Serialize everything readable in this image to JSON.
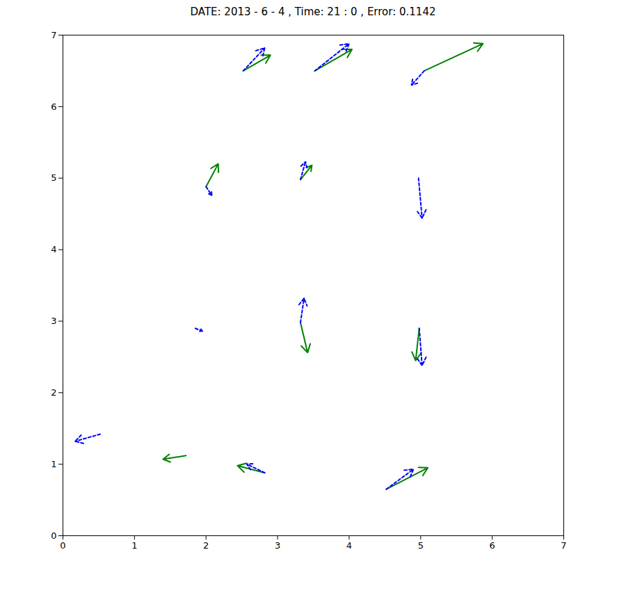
{
  "chart_data": {
    "type": "quiver",
    "title": "DATE: 2013 -  6 -  4 , Time: 21 :  0 , Error: 0.1142",
    "xlim": [
      0,
      7
    ],
    "ylim": [
      0,
      7
    ],
    "xticks": [
      0,
      1,
      2,
      3,
      4,
      5,
      6,
      7
    ],
    "yticks": [
      0,
      1,
      2,
      3,
      4,
      5,
      6,
      7
    ],
    "series": [
      {
        "color": "#008000",
        "line_style": "solid",
        "x": [
          2.52,
          3.52,
          5.05,
          2.0,
          3.32,
          4.97,
          1.85,
          3.32,
          4.98,
          0.52,
          1.72,
          2.82,
          4.52
        ],
        "y": [
          6.5,
          6.5,
          6.5,
          4.88,
          4.98,
          5.0,
          2.9,
          2.98,
          2.9,
          1.42,
          1.12,
          0.88,
          0.65
        ],
        "dx": [
          0.38,
          0.52,
          0.82,
          0.17,
          0.16,
          0.0,
          0.0,
          0.1,
          -0.05,
          0.0,
          -0.32,
          -0.38,
          0.58
        ],
        "dy": [
          0.22,
          0.3,
          0.38,
          0.32,
          0.2,
          0.0,
          0.0,
          -0.42,
          -0.45,
          0.0,
          -0.05,
          0.1,
          0.3
        ]
      },
      {
        "color": "#0000FF",
        "line_style": "dashed",
        "x": [
          2.52,
          3.52,
          5.05,
          2.0,
          3.32,
          4.97,
          1.85,
          3.32,
          4.98,
          0.52,
          1.72,
          2.82,
          4.52
        ],
        "y": [
          6.5,
          6.5,
          6.5,
          4.88,
          4.98,
          5.0,
          2.9,
          2.98,
          2.9,
          1.42,
          1.12,
          0.88,
          0.65
        ],
        "dx": [
          0.3,
          0.48,
          -0.18,
          0.08,
          0.07,
          0.05,
          0.1,
          0.05,
          0.04,
          -0.35,
          0.0,
          -0.25,
          0.38
        ],
        "dy": [
          0.32,
          0.38,
          -0.2,
          -0.12,
          0.25,
          -0.56,
          -0.04,
          0.34,
          -0.52,
          -0.1,
          0.0,
          0.12,
          0.28
        ]
      }
    ]
  }
}
